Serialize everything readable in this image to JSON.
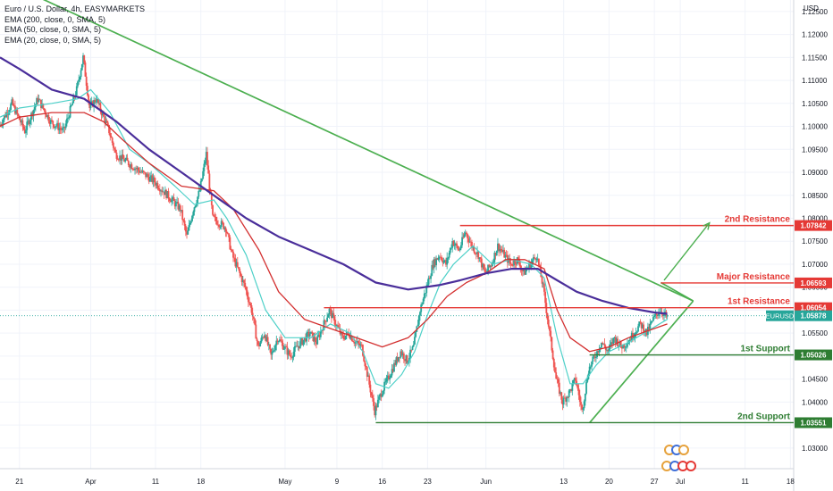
{
  "legend": [
    "Euro / U.S. Dollar, 4h, EASYMARKETS",
    "EMA (200, close, 0, SMA, 5)",
    "EMA (50, close, 0, SMA, 5)",
    "EMA (20, close, 0, SMA, 5)"
  ],
  "colors": {
    "up": "#26a69a",
    "down": "#ef5350",
    "ema200": "#4a2e9a",
    "ema50": "#d32f2f",
    "ema20": "#4dd0c8",
    "resistance": "#e53935",
    "support": "#2e7d32",
    "trendline": "#4caf50",
    "current": "#26a69a",
    "grid": "#f0f3fa"
  },
  "chart_data": {
    "type": "candlestick",
    "title": "Euro / U.S. Dollar, 4h, EASYMARKETS",
    "currency_label": "USD",
    "ylim": [
      1.0255,
      1.1275
    ],
    "y_ticks": [
      "1.12500",
      "1.12000",
      "1.11500",
      "1.11000",
      "1.10500",
      "1.10000",
      "1.09500",
      "1.09000",
      "1.08500",
      "1.08000",
      "1.07500",
      "1.07000",
      "1.06500",
      "1.06000",
      "1.05500",
      "1.05000",
      "1.04500",
      "1.04000",
      "1.03500",
      "1.03000"
    ],
    "x_ticks": [
      {
        "label": "21",
        "day": -10
      },
      {
        "label": "Apr",
        "day": 1
      },
      {
        "label": "11",
        "day": 11
      },
      {
        "label": "18",
        "day": 18
      },
      {
        "label": "May",
        "day": 31
      },
      {
        "label": "9",
        "day": 39
      },
      {
        "label": "16",
        "day": 46
      },
      {
        "label": "23",
        "day": 53
      },
      {
        "label": "Jun",
        "day": 62
      },
      {
        "label": "13",
        "day": 74
      },
      {
        "label": "20",
        "day": 81
      },
      {
        "label": "27",
        "day": 88
      },
      {
        "label": "Jul",
        "day": 92
      },
      {
        "label": "11",
        "day": 102
      },
      {
        "label": "18",
        "day": 109
      }
    ],
    "xlim": [
      -13,
      109.5
    ],
    "price_path": [
      [
        -13,
        1.1
      ],
      [
        -11,
        1.105
      ],
      [
        -9,
        1.099
      ],
      [
        -7,
        1.106
      ],
      [
        -5,
        1.101
      ],
      [
        -3,
        1.099
      ],
      [
        -1,
        1.108
      ],
      [
        0,
        1.115
      ],
      [
        1,
        1.104
      ],
      [
        2,
        1.106
      ],
      [
        4,
        1.099
      ],
      [
        5,
        1.094
      ],
      [
        7,
        1.092
      ],
      [
        9,
        1.09
      ],
      [
        11,
        1.088
      ],
      [
        13,
        1.085
      ],
      [
        15,
        1.082
      ],
      [
        16,
        1.076
      ],
      [
        17,
        1.082
      ],
      [
        18,
        1.086
      ],
      [
        19,
        1.094
      ],
      [
        20,
        1.08
      ],
      [
        22,
        1.078
      ],
      [
        23,
        1.072
      ],
      [
        25,
        1.065
      ],
      [
        26,
        1.06
      ],
      [
        27,
        1.052
      ],
      [
        28,
        1.055
      ],
      [
        29,
        1.05
      ],
      [
        30,
        1.054
      ],
      [
        32,
        1.05
      ],
      [
        33,
        1.052
      ],
      [
        35,
        1.055
      ],
      [
        36,
        1.053
      ],
      [
        38,
        1.06
      ],
      [
        39,
        1.057
      ],
      [
        40,
        1.054
      ],
      [
        41,
        1.055
      ],
      [
        42,
        1.053
      ],
      [
        43,
        1.052
      ],
      [
        44,
        1.045
      ],
      [
        45,
        1.038
      ],
      [
        46,
        1.042
      ],
      [
        47,
        1.045
      ],
      [
        48,
        1.048
      ],
      [
        49,
        1.051
      ],
      [
        50,
        1.049
      ],
      [
        51,
        1.052
      ],
      [
        52,
        1.06
      ],
      [
        53,
        1.065
      ],
      [
        54,
        1.07
      ],
      [
        55,
        1.072
      ],
      [
        56,
        1.07
      ],
      [
        57,
        1.075
      ],
      [
        58,
        1.073
      ],
      [
        59,
        1.077
      ],
      [
        60,
        1.074
      ],
      [
        61,
        1.072
      ],
      [
        62,
        1.068
      ],
      [
        63,
        1.07
      ],
      [
        64,
        1.074
      ],
      [
        65,
        1.072
      ],
      [
        66,
        1.07
      ],
      [
        67,
        1.071
      ],
      [
        68,
        1.068
      ],
      [
        69,
        1.07
      ],
      [
        70,
        1.072
      ],
      [
        71,
        1.065
      ],
      [
        72,
        1.055
      ],
      [
        73,
        1.045
      ],
      [
        74,
        1.04
      ],
      [
        75,
        1.042
      ],
      [
        76,
        1.045
      ],
      [
        77,
        1.038
      ],
      [
        78,
        1.047
      ],
      [
        79,
        1.05
      ],
      [
        80,
        1.053
      ],
      [
        81,
        1.051
      ],
      [
        82,
        1.054
      ],
      [
        83,
        1.052
      ],
      [
        84,
        1.053
      ],
      [
        85,
        1.055
      ],
      [
        86,
        1.057
      ],
      [
        87,
        1.055
      ],
      [
        88,
        1.058
      ],
      [
        89,
        1.06
      ],
      [
        90,
        1.0588
      ]
    ],
    "ema200": [
      [
        -13,
        1.115
      ],
      [
        -10,
        1.1125
      ],
      [
        -5,
        1.108
      ],
      [
        0,
        1.106
      ],
      [
        5,
        1.101
      ],
      [
        10,
        1.095
      ],
      [
        15,
        1.09
      ],
      [
        20,
        1.085
      ],
      [
        25,
        1.08
      ],
      [
        30,
        1.076
      ],
      [
        35,
        1.073
      ],
      [
        40,
        1.07
      ],
      [
        45,
        1.066
      ],
      [
        50,
        1.0645
      ],
      [
        55,
        1.0655
      ],
      [
        58,
        1.0665
      ],
      [
        62,
        1.068
      ],
      [
        66,
        1.069
      ],
      [
        70,
        1.069
      ],
      [
        73,
        1.0665
      ],
      [
        76,
        1.064
      ],
      [
        80,
        1.062
      ],
      [
        84,
        1.0605
      ],
      [
        88,
        1.0595
      ],
      [
        90,
        1.0592
      ]
    ],
    "ema50": [
      [
        -13,
        1.1
      ],
      [
        -10,
        1.102
      ],
      [
        -5,
        1.103
      ],
      [
        0,
        1.103
      ],
      [
        3,
        1.101
      ],
      [
        6,
        1.097
      ],
      [
        10,
        1.092
      ],
      [
        15,
        1.087
      ],
      [
        20,
        1.086
      ],
      [
        23,
        1.082
      ],
      [
        27,
        1.073
      ],
      [
        30,
        1.064
      ],
      [
        34,
        1.058
      ],
      [
        38,
        1.056
      ],
      [
        42,
        1.054
      ],
      [
        46,
        1.052
      ],
      [
        50,
        1.054
      ],
      [
        53,
        1.058
      ],
      [
        56,
        1.063
      ],
      [
        59,
        1.066
      ],
      [
        62,
        1.068
      ],
      [
        65,
        1.071
      ],
      [
        68,
        1.071
      ],
      [
        71,
        1.069
      ],
      [
        73,
        1.06
      ],
      [
        75,
        1.054
      ],
      [
        78,
        1.051
      ],
      [
        81,
        1.052
      ],
      [
        84,
        1.054
      ],
      [
        88,
        1.056
      ],
      [
        90,
        1.057
      ]
    ],
    "ema20": [
      [
        -13,
        1.102
      ],
      [
        -10,
        1.104
      ],
      [
        -5,
        1.105
      ],
      [
        -1,
        1.106
      ],
      [
        1,
        1.108
      ],
      [
        4,
        1.103
      ],
      [
        7,
        1.095
      ],
      [
        10,
        1.092
      ],
      [
        14,
        1.087
      ],
      [
        17,
        1.083
      ],
      [
        20,
        1.084
      ],
      [
        22,
        1.08
      ],
      [
        25,
        1.072
      ],
      [
        28,
        1.06
      ],
      [
        31,
        1.054
      ],
      [
        35,
        1.054
      ],
      [
        38,
        1.057
      ],
      [
        41,
        1.055
      ],
      [
        43,
        1.051
      ],
      [
        45,
        1.044
      ],
      [
        47,
        1.043
      ],
      [
        49,
        1.046
      ],
      [
        51,
        1.051
      ],
      [
        53,
        1.059
      ],
      [
        55,
        1.066
      ],
      [
        57,
        1.07
      ],
      [
        60,
        1.074
      ],
      [
        63,
        1.07
      ],
      [
        66,
        1.071
      ],
      [
        69,
        1.07
      ],
      [
        71,
        1.067
      ],
      [
        73,
        1.054
      ],
      [
        75,
        1.044
      ],
      [
        77,
        1.044
      ],
      [
        79,
        1.048
      ],
      [
        81,
        1.051
      ],
      [
        84,
        1.053
      ],
      [
        87,
        1.0555
      ],
      [
        90,
        1.058
      ]
    ],
    "levels": [
      {
        "id": "resistance-2",
        "label": "2nd Resistance",
        "price": 1.07842,
        "price_label": "1.07842",
        "kind": "resistance",
        "from_day": 58
      },
      {
        "id": "major-resistance",
        "label": "Major Resistance",
        "price": 1.06593,
        "price_label": "1.06593",
        "kind": "resistance",
        "from_day": 89
      },
      {
        "id": "resistance-1",
        "label": "1st Resistance",
        "price": 1.06054,
        "price_label": "1.06054",
        "kind": "resistance",
        "from_day": 37
      },
      {
        "id": "support-1",
        "label": "1st Support",
        "price": 1.05026,
        "price_label": "1.05026",
        "kind": "support",
        "from_day": 78
      },
      {
        "id": "support-2",
        "label": "2nd Support",
        "price": 1.03551,
        "price_label": "1.03551",
        "kind": "support",
        "from_day": 45
      }
    ],
    "current": {
      "symbol": "EURUSD",
      "price": 1.05878,
      "price_label": "1.05878"
    },
    "trendlines": [
      {
        "id": "descending-trendline",
        "from": [
          -13,
          1.132
        ],
        "to": [
          94,
          1.062
        ]
      },
      {
        "id": "ascending-trendline",
        "from": [
          78,
          1.0355
        ],
        "to": [
          94,
          1.062
        ]
      },
      {
        "id": "pattern-base",
        "from": [
          89,
          1.066
        ],
        "to": [
          94,
          1.062
        ]
      }
    ],
    "forecast_arrow": {
      "from": [
        89.5,
        1.0665
      ],
      "to": [
        96.5,
        1.079
      ]
    }
  }
}
